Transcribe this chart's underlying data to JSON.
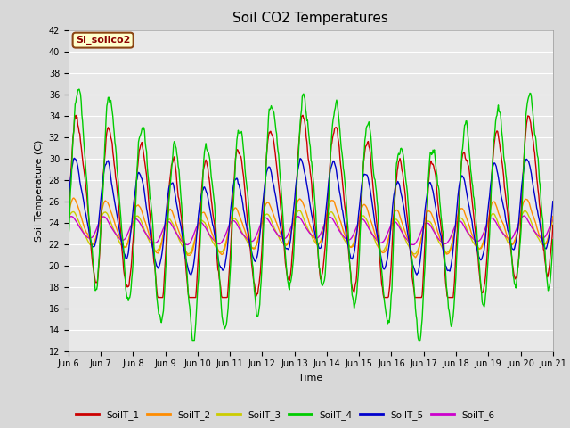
{
  "title": "Soil CO2 Temperatures",
  "xlabel": "Time",
  "ylabel": "Soil Temperature (C)",
  "ylim": [
    12,
    42
  ],
  "yticks": [
    12,
    14,
    16,
    18,
    20,
    22,
    24,
    26,
    28,
    30,
    32,
    34,
    36,
    38,
    40,
    42
  ],
  "annotation_text": "SI_soilco2",
  "annotation_bg": "#ffffcc",
  "annotation_border": "#8b4513",
  "annotation_text_color": "#8b0000",
  "colors": {
    "SoilT_1": "#cc0000",
    "SoilT_2": "#ff8c00",
    "SoilT_3": "#cccc00",
    "SoilT_4": "#00cc00",
    "SoilT_5": "#0000cc",
    "SoilT_6": "#cc00cc"
  },
  "bg_color": "#d8d8d8",
  "plot_bg": "#e8e8e8",
  "grid_color": "#ffffff",
  "n_days": 15,
  "start_day": 6,
  "points_per_day": 48,
  "figsize": [
    6.4,
    4.8
  ],
  "dpi": 100
}
